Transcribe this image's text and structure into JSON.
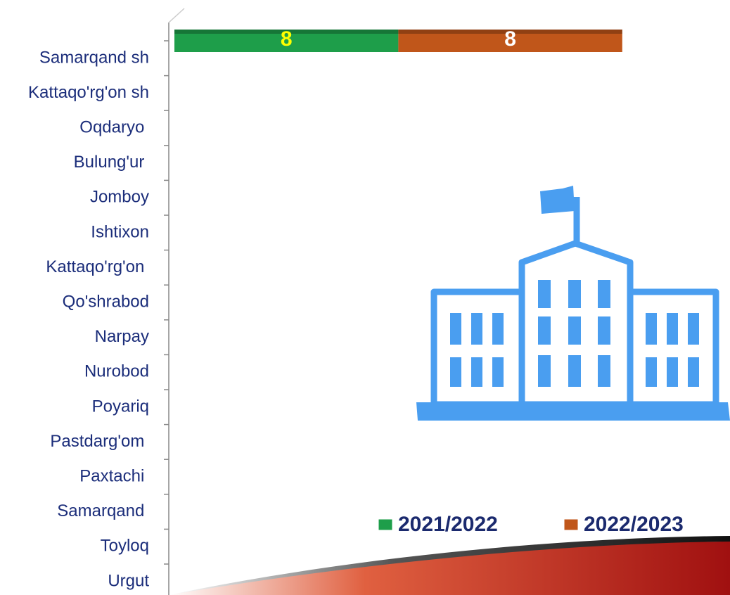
{
  "chart_data": {
    "type": "stacked-bar-horizontal",
    "categories": [
      "Samarqand sh",
      "Kattaqo'rg'on sh",
      "Oqdaryo ",
      "Bulung'ur ",
      "Jomboy",
      "Ishtixon",
      "Kattaqo'rg'on ",
      "Qo'shrabod",
      "Narpay",
      "Nurobod",
      "Poyariq",
      "Pastdarg'om ",
      "Paxtachi ",
      "Samarqand ",
      "Toyloq",
      "Urgut"
    ],
    "series": [
      {
        "name": "2021/2022",
        "color": "#1e9e4a",
        "label_color": "#ffff00",
        "values": [
          8,
          null,
          null,
          null,
          null,
          null,
          null,
          null,
          null,
          null,
          null,
          null,
          null,
          null,
          null,
          null
        ]
      },
      {
        "name": "2022/2023",
        "color": "#c0561a",
        "label_color": "#ffffff",
        "values": [
          8,
          null,
          null,
          null,
          null,
          null,
          null,
          null,
          null,
          null,
          null,
          null,
          null,
          null,
          null,
          null
        ]
      }
    ],
    "legend": "bottom-right"
  }
}
